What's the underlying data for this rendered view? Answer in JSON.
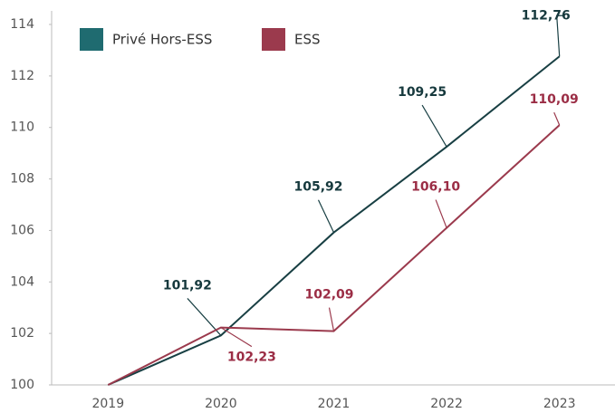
{
  "chart_data": {
    "type": "line",
    "categories": [
      "2019",
      "2020",
      "2021",
      "2022",
      "2023"
    ],
    "series": [
      {
        "name": "Privé Hors-ESS",
        "color": "#1f6b70",
        "line_color": "#183f43",
        "label_color": "#16393d",
        "values": [
          100,
          101.92,
          105.92,
          109.25,
          112.76
        ],
        "value_labels": [
          null,
          "101,92",
          "105,92",
          "109,25",
          "112,76"
        ]
      },
      {
        "name": "ESS",
        "color": "#9b3a4d",
        "line_color": "#9b3a4d",
        "label_color": "#9b2d45",
        "values": [
          100,
          102.23,
          102.09,
          106.1,
          110.09
        ],
        "value_labels": [
          null,
          "102,23",
          "102,09",
          "106,10",
          "110,09"
        ]
      }
    ],
    "ylim": [
      100,
      114
    ],
    "yticks": [
      100,
      102,
      104,
      106,
      108,
      110,
      112,
      114
    ],
    "grid": false,
    "legend": "top-left"
  }
}
